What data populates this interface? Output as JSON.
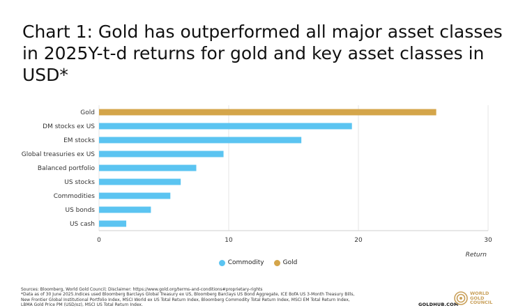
{
  "title": "Chart 1: Gold has outperformed all major asset classes in 2025Y-t-d returns for gold and key asset classes in USD*",
  "colors": {
    "commodity": "#5bc4f1",
    "gold": "#d4a54a",
    "grid": "#e6e6e6",
    "axis": "#cfcfcf"
  },
  "chart_data": {
    "type": "bar",
    "orientation": "horizontal",
    "categories": [
      "Gold",
      "DM stocks ex US",
      "EM stocks",
      "Global treasuries ex US",
      "Balanced portfolio",
      "US stocks",
      "Commodities",
      "US bonds",
      "US cash"
    ],
    "values": [
      26.0,
      19.5,
      15.6,
      9.6,
      7.5,
      6.3,
      5.5,
      4.0,
      2.1
    ],
    "series_of": [
      "Gold",
      "Commodity",
      "Commodity",
      "Commodity",
      "Commodity",
      "Commodity",
      "Commodity",
      "Commodity",
      "Commodity"
    ],
    "xlim": [
      0,
      30
    ],
    "xticks": [
      0,
      10,
      20,
      30
    ],
    "xlabel": "Return",
    "ylabel": "",
    "grid": true,
    "legend": [
      {
        "name": "Commodity",
        "color": "#5bc4f1"
      },
      {
        "name": "Gold",
        "color": "#d4a54a"
      }
    ]
  },
  "footnote": [
    "Sources: Bloomberg, World Gold Council; Disclaimer: https://www.gold.org/terms-and-conditions#proprietary-rights",
    "*Data as of 30 June 2025.Indices used Bloomberg Barclays Global Treasury ex US, Bloomberg Barclays US Bond Aggregate, ICE BofA US 3-Month Treasury Bills,",
    "New Frontier Global Institutional Portfolio Index, MSCI World ex US Total Return Index, Bloomberg Commodity Total Return Index, MSCI EM Total Return Index,",
    "LBMA Gold Price PM (USD/oz), MSCI US Total Return Index."
  ],
  "site": "GOLDHUB.COM",
  "logo": {
    "line1": "WORLD",
    "line2": "GOLD",
    "line3": "COUNCIL",
    "icon": "world-gold-council-logo-icon"
  }
}
